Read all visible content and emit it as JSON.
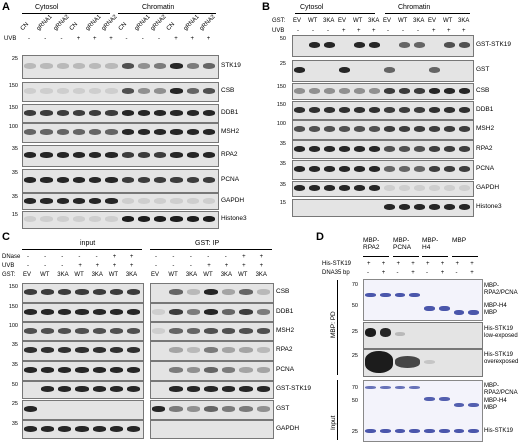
{
  "panels": {
    "A": {
      "label": "A",
      "headers": [
        "Cytosol",
        "Chromatin"
      ],
      "uvb_label": "UVB",
      "lanes": [
        "CN",
        "gRNA1",
        "gRNA2",
        "CN",
        "gRNA1",
        "gRNA2",
        "CN",
        "gRNA1",
        "gRNA2",
        "CN",
        "gRNA1",
        "gRNA2"
      ],
      "uvb": [
        "-",
        "-",
        "-",
        "+",
        "+",
        "+",
        "-",
        "-",
        "-",
        "+",
        "+",
        "+"
      ],
      "rows": [
        {
          "mw": "25",
          "name": "STK19"
        },
        {
          "mw": "150",
          "name": "CSB"
        },
        {
          "mw": "150",
          "name": "DDB1"
        },
        {
          "mw": "100",
          "name": "MSH2"
        },
        {
          "mw": "35",
          "name": "RPA2"
        },
        {
          "mw": "35",
          "name": "PCNA"
        },
        {
          "mw": "35",
          "name": "GAPDH"
        },
        {
          "mw": "15",
          "name": "Histone3"
        }
      ]
    },
    "B": {
      "label": "B",
      "gst_label": "GST:",
      "uvb_label": "UVB",
      "headers": [
        "Cytosol",
        "Chromatin"
      ],
      "lanes": [
        "EV",
        "WT",
        "3KA",
        "EV",
        "WT",
        "3KA",
        "EV",
        "WT",
        "3KA",
        "EV",
        "WT",
        "3KA"
      ],
      "uvb": [
        "-",
        "-",
        "-",
        "+",
        "+",
        "+",
        "-",
        "-",
        "-",
        "+",
        "+",
        "+"
      ],
      "rows": [
        {
          "mw": "50",
          "name": "GST-STK19"
        },
        {
          "mw": "25",
          "name": "GST"
        },
        {
          "mw": "150",
          "name": "CSB"
        },
        {
          "mw": "150",
          "name": "DDB1"
        },
        {
          "mw": "100",
          "name": "MSH2"
        },
        {
          "mw": "35",
          "name": "RPA2"
        },
        {
          "mw": "35",
          "name": "PCNA"
        },
        {
          "mw": "35",
          "name": "GAPDH"
        },
        {
          "mw": "15",
          "name": "Histone3"
        }
      ]
    },
    "C": {
      "label": "C",
      "headers": [
        "input",
        "GST: IP"
      ],
      "dnase_label": "DNase",
      "uvb_label": "UVB",
      "gst_label": "GST:",
      "lanes": [
        "EV",
        "WT",
        "3KA",
        "WT",
        "3KA",
        "WT",
        "3KA"
      ],
      "dnase": [
        "-",
        "-",
        "-",
        "-",
        "-",
        "+",
        "+"
      ],
      "uvb": [
        "-",
        "-",
        "-",
        "+",
        "+",
        "+",
        "+"
      ],
      "rows": [
        {
          "mw": "150",
          "name": "CSB"
        },
        {
          "mw": "150",
          "name": "DDB1"
        },
        {
          "mw": "100",
          "name": "MSH2"
        },
        {
          "mw": "35",
          "name": "RPA2"
        },
        {
          "mw": "35",
          "name": "PCNA"
        },
        {
          "mw": "50",
          "name": "GST-STK19"
        },
        {
          "mw": "25",
          "name": "GST"
        },
        {
          "mw": "35",
          "name": "GAPDH"
        }
      ]
    },
    "D": {
      "label": "D",
      "groups": [
        "MBP-\nRPA2",
        "MBP-\nPCNA",
        "MBP-\nH4",
        "MBP"
      ],
      "his_label": "His-STK19",
      "dna_label": "DNA35 bp",
      "his": [
        "+",
        "+",
        "+",
        "+",
        "+",
        "+",
        "+",
        "+"
      ],
      "dna": [
        "-",
        "+",
        "-",
        "+",
        "-",
        "+",
        "-",
        "+"
      ],
      "pd_label": "MBP: PD",
      "input_label": "Input",
      "pd_mw": [
        "70",
        "50",
        "25",
        "25"
      ],
      "input_mw": [
        "70",
        "50",
        "25"
      ],
      "pd_right": [
        "MBP-\nRPA2/PCNA",
        "MBP-H4\nMBP",
        "His-STK19\nlow-exposed",
        "His-STK19\noverexposed"
      ],
      "input_right": [
        "MBP-\nRPA2/PCNA",
        "MBP-H4\nMBP",
        "His-STK19"
      ]
    }
  }
}
